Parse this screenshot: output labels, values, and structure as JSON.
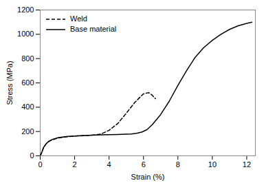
{
  "chart_data": {
    "type": "line",
    "xlabel": "Strain (%)",
    "ylabel": "Stress (MPa)",
    "xlim": [
      0,
      12.5
    ],
    "ylim": [
      0,
      1200
    ],
    "xticks": [
      0,
      2,
      4,
      6,
      8,
      10,
      12
    ],
    "yticks": [
      0,
      200,
      400,
      600,
      800,
      1000,
      1200
    ],
    "grid": false,
    "legend": "upper left",
    "series": [
      {
        "name": "Weld",
        "color": "#000000",
        "line_style": "dashed",
        "x": [
          0,
          0.05,
          0.12,
          0.2,
          0.35,
          0.5,
          0.7,
          1.0,
          1.5,
          2.0,
          2.5,
          3.0,
          3.5,
          4.0,
          4.5,
          5.0,
          5.5,
          6.0,
          6.3,
          6.5,
          6.7
        ],
        "values": [
          0,
          15,
          40,
          70,
          100,
          118,
          132,
          145,
          156,
          162,
          166,
          170,
          178,
          210,
          265,
          350,
          440,
          510,
          520,
          500,
          470
        ]
      },
      {
        "name": "Base material",
        "color": "#000000",
        "line_style": "solid",
        "x": [
          0,
          0.05,
          0.12,
          0.2,
          0.35,
          0.5,
          0.7,
          1.0,
          1.5,
          2.0,
          2.5,
          3.0,
          3.5,
          4.0,
          4.5,
          5.0,
          5.3,
          5.6,
          5.9,
          6.2,
          6.5,
          7.0,
          7.5,
          8.0,
          8.5,
          9.0,
          9.5,
          10.0,
          10.5,
          11.0,
          11.5,
          12.0,
          12.3
        ],
        "values": [
          0,
          15,
          40,
          70,
          100,
          120,
          135,
          148,
          158,
          163,
          167,
          170,
          172,
          174,
          176,
          178,
          180,
          185,
          195,
          215,
          255,
          340,
          450,
          580,
          700,
          810,
          890,
          950,
          1000,
          1040,
          1070,
          1090,
          1100
        ]
      }
    ]
  }
}
